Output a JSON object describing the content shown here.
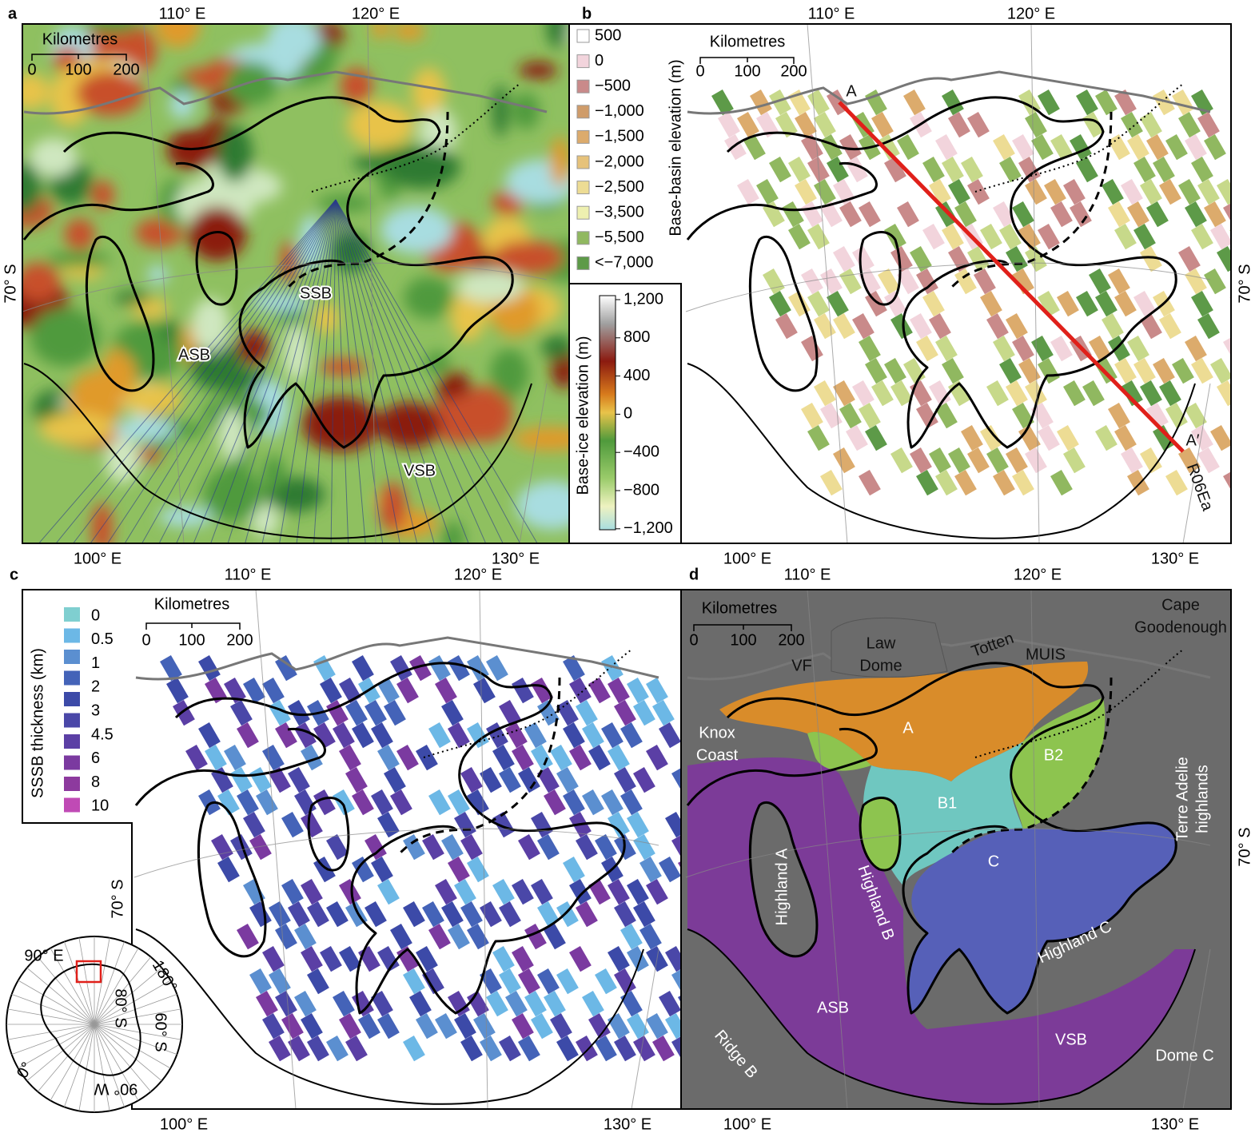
{
  "panels": [
    {
      "letter": "a",
      "lon_top": [
        "110° E",
        "120° E"
      ],
      "lon_bottom": [
        "100° E",
        "130° E"
      ],
      "lat": "70° S",
      "scale_title": "Kilometres",
      "scale_ticks": [
        "0",
        "100",
        "200"
      ],
      "labels": [
        "ASB",
        "SSB",
        "VSB"
      ]
    },
    {
      "letter": "b",
      "lon_top": [
        "110° E",
        "120° E"
      ],
      "lon_bottom": [
        "100° E",
        "130° E"
      ],
      "lat": "70° S",
      "scale_title": "Kilometres",
      "scale_ticks": [
        "0",
        "100",
        "200"
      ],
      "labels": [
        "A",
        "A′",
        "R06Ea"
      ]
    },
    {
      "letter": "c",
      "lon_top": [
        "110° E",
        "120° E"
      ],
      "lon_bottom": [
        "100° E",
        "130° E"
      ],
      "lat": "70° S",
      "scale_title": "Kilometres",
      "scale_ticks": [
        "0",
        "100",
        "200"
      ]
    },
    {
      "letter": "d",
      "lon_top": [
        "110° E",
        "120° E"
      ],
      "lon_bottom": [
        "100° E",
        "130° E"
      ],
      "lat": "70° S",
      "scale_title": "Kilometres",
      "scale_ticks": [
        "0",
        "100",
        "200"
      ],
      "labels": [
        [
          "Law",
          "Dome"
        ],
        [
          "VF"
        ],
        [
          "Totten"
        ],
        [
          "MUIS"
        ],
        [
          "Cape",
          "Goodenough"
        ],
        [
          "Knox",
          "Coast"
        ],
        [
          "A"
        ],
        [
          "B1"
        ],
        [
          "B2"
        ],
        [
          "C"
        ],
        [
          "Highland A"
        ],
        [
          "Highland B"
        ],
        [
          "Highland C"
        ],
        [
          "ASB"
        ],
        [
          "VSB"
        ],
        [
          "Ridge B"
        ],
        [
          "Dome C"
        ],
        [
          "Terre Adelie",
          "highlands"
        ]
      ]
    }
  ],
  "legend_basin": {
    "title": "Base-basin elevation (m)",
    "labels": [
      "500",
      "0",
      "−500",
      "−1,000",
      "−1,500",
      "−2,000",
      "−2,500",
      "−3,500",
      "−5,500",
      "<−7,000"
    ]
  },
  "legend_ice": {
    "title": "Base-ice elevation (m)",
    "labels": [
      "1,200",
      "800",
      "400",
      "0",
      "−400",
      "−800",
      "−1,200"
    ]
  },
  "legend_thickness": {
    "title": "SSSB thickness (km)",
    "labels": [
      "0",
      "0.5",
      "1",
      "2",
      "3",
      "4.5",
      "6",
      "8",
      "10"
    ]
  },
  "inset": {
    "labels": [
      "90° E",
      "180°",
      "60° S",
      "80° S",
      "0°",
      "90° W"
    ]
  }
}
